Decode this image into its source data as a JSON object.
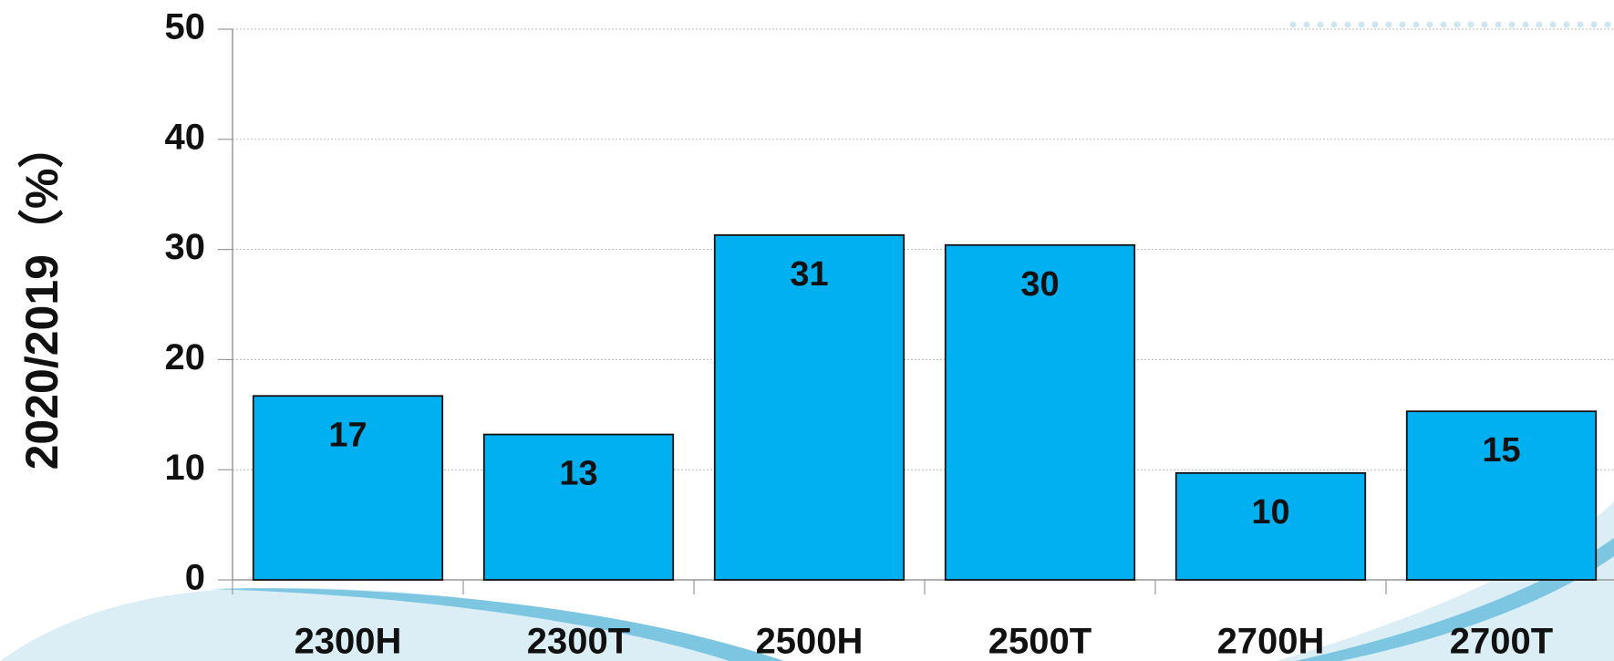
{
  "chart_data": {
    "type": "bar",
    "y_label": "2020/2019（%）",
    "categories": [
      "2300H",
      "2300T",
      "2500H",
      "2500T",
      "2700H",
      "2700T"
    ],
    "values": [
      16.7,
      13.2,
      31.3,
      30.4,
      9.7,
      15.3
    ],
    "value_labels": [
      "17",
      "13",
      "31",
      "30",
      "10",
      "15"
    ],
    "color": "#00b0f0",
    "ylim": [
      0,
      50
    ],
    "yticks": [
      0,
      10,
      20,
      30,
      40,
      50
    ],
    "grid": true
  }
}
